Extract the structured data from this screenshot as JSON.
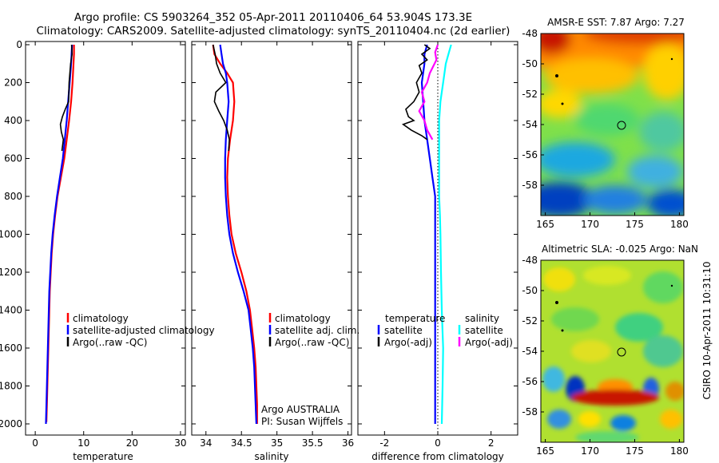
{
  "header": {
    "line1": "Argo profile: CS 5903264_352 05-Apr-2011 20110406_64 53.904S 173.3E",
    "line2": "Climatology: CARS2009. Satellite-adjusted climatology: synTS_20110404.nc (2d earlier)"
  },
  "colors": {
    "climatology": "#ff0000",
    "satellite": "#0000ff",
    "argo": "#000000",
    "diff_t_satellite": "#0000ff",
    "diff_t_argo": "#000000",
    "diff_s_satellite": "#00ffff",
    "diff_s_argo": "#ff00ff"
  },
  "chart_data": [
    {
      "id": "temperature",
      "type": "line",
      "xlabel": "temperature",
      "ylabel": "",
      "xlim": [
        -2,
        31
      ],
      "ylim": [
        2050,
        0
      ],
      "x_ticks": [
        "0",
        "10",
        "20",
        "30"
      ],
      "x_tick_values": [
        0,
        10,
        20,
        30
      ],
      "y_ticks": [
        "0",
        "200",
        "400",
        "600",
        "800",
        "1000",
        "1200",
        "1400",
        "1600",
        "1800",
        "2000"
      ],
      "legend": [
        "climatology",
        "satellite-adjusted climatology",
        "Argo(..raw -QC)"
      ],
      "series": [
        {
          "name": "climatology",
          "color_key": "climatology",
          "points": [
            [
              8.0,
              0
            ],
            [
              8.0,
              50
            ],
            [
              7.9,
              100
            ],
            [
              7.7,
              200
            ],
            [
              7.4,
              300
            ],
            [
              7.0,
              400
            ],
            [
              6.5,
              500
            ],
            [
              6.0,
              600
            ],
            [
              5.3,
              700
            ],
            [
              4.6,
              800
            ],
            [
              4.1,
              900
            ],
            [
              3.7,
              1000
            ],
            [
              3.4,
              1100
            ],
            [
              3.2,
              1200
            ],
            [
              3.0,
              1300
            ],
            [
              2.9,
              1400
            ],
            [
              2.8,
              1500
            ],
            [
              2.7,
              1600
            ],
            [
              2.6,
              1700
            ],
            [
              2.5,
              1800
            ],
            [
              2.4,
              1900
            ],
            [
              2.3,
              1990
            ]
          ]
        },
        {
          "name": "satellite-adjusted climatology",
          "color_key": "satellite",
          "points": [
            [
              7.6,
              0
            ],
            [
              7.5,
              50
            ],
            [
              7.4,
              100
            ],
            [
              7.1,
              200
            ],
            [
              6.8,
              300
            ],
            [
              6.5,
              400
            ],
            [
              6.1,
              500
            ],
            [
              5.7,
              600
            ],
            [
              5.1,
              700
            ],
            [
              4.5,
              800
            ],
            [
              4.0,
              900
            ],
            [
              3.6,
              1000
            ],
            [
              3.3,
              1100
            ],
            [
              3.1,
              1200
            ],
            [
              2.9,
              1300
            ],
            [
              2.8,
              1400
            ],
            [
              2.7,
              1500
            ],
            [
              2.6,
              1600
            ],
            [
              2.5,
              1700
            ],
            [
              2.4,
              1800
            ],
            [
              2.3,
              1900
            ],
            [
              2.2,
              2000
            ]
          ]
        },
        {
          "name": "Argo(..raw -QC)",
          "color_key": "argo",
          "points": [
            [
              7.5,
              0
            ],
            [
              7.6,
              50
            ],
            [
              7.3,
              100
            ],
            [
              7.0,
              200
            ],
            [
              6.9,
              300
            ],
            [
              6.2,
              340
            ],
            [
              5.6,
              380
            ],
            [
              5.2,
              420
            ],
            [
              5.4,
              460
            ],
            [
              5.8,
              500
            ],
            [
              5.5,
              560
            ]
          ]
        }
      ]
    },
    {
      "id": "salinity",
      "type": "line",
      "xlabel": "salinity",
      "ylabel": "",
      "xlim": [
        33.8,
        36.05
      ],
      "ylim": [
        2050,
        0
      ],
      "x_ticks": [
        "34",
        "34.5",
        "35",
        "35.5",
        "36"
      ],
      "x_tick_values": [
        34,
        34.5,
        35,
        35.5,
        36
      ],
      "legend": [
        "climatology",
        "satellite adj. clim.",
        "Argo(..raw -QC)"
      ],
      "annotation": [
        "Argo AUSTRALIA",
        "PI: Susan Wijffels"
      ],
      "series": [
        {
          "name": "climatology",
          "color_key": "climatology",
          "points": [
            [
              34.1,
              0
            ],
            [
              34.12,
              50
            ],
            [
              34.2,
              100
            ],
            [
              34.3,
              150
            ],
            [
              34.38,
              200
            ],
            [
              34.4,
              300
            ],
            [
              34.38,
              400
            ],
            [
              34.34,
              500
            ],
            [
              34.31,
              600
            ],
            [
              34.3,
              700
            ],
            [
              34.31,
              800
            ],
            [
              34.33,
              900
            ],
            [
              34.36,
              1000
            ],
            [
              34.42,
              1100
            ],
            [
              34.5,
              1200
            ],
            [
              34.57,
              1300
            ],
            [
              34.62,
              1400
            ],
            [
              34.65,
              1500
            ],
            [
              34.68,
              1600
            ],
            [
              34.7,
              1700
            ],
            [
              34.71,
              1800
            ],
            [
              34.72,
              1900
            ],
            [
              34.72,
              2000
            ]
          ]
        },
        {
          "name": "satellite adj. clim.",
          "color_key": "satellite",
          "points": [
            [
              34.2,
              0
            ],
            [
              34.22,
              50
            ],
            [
              34.24,
              100
            ],
            [
              34.28,
              150
            ],
            [
              34.3,
              200
            ],
            [
              34.32,
              300
            ],
            [
              34.3,
              400
            ],
            [
              34.28,
              500
            ],
            [
              34.27,
              600
            ],
            [
              34.27,
              700
            ],
            [
              34.28,
              800
            ],
            [
              34.3,
              900
            ],
            [
              34.33,
              1000
            ],
            [
              34.38,
              1100
            ],
            [
              34.45,
              1200
            ],
            [
              34.53,
              1300
            ],
            [
              34.6,
              1400
            ],
            [
              34.63,
              1500
            ],
            [
              34.66,
              1600
            ],
            [
              34.68,
              1700
            ],
            [
              34.69,
              1800
            ],
            [
              34.7,
              1900
            ],
            [
              34.71,
              2000
            ]
          ]
        },
        {
          "name": "Argo(..raw -QC)",
          "color_key": "argo",
          "points": [
            [
              34.1,
              0
            ],
            [
              34.13,
              50
            ],
            [
              34.15,
              100
            ],
            [
              34.2,
              150
            ],
            [
              34.28,
              200
            ],
            [
              34.14,
              250
            ],
            [
              34.12,
              300
            ],
            [
              34.18,
              350
            ],
            [
              34.25,
              400
            ],
            [
              34.3,
              450
            ],
            [
              34.33,
              500
            ],
            [
              34.32,
              560
            ]
          ]
        }
      ]
    },
    {
      "id": "difference",
      "type": "line",
      "xlabel": "difference from climatology",
      "ylabel": "",
      "xlim": [
        -3.0,
        3.0
      ],
      "ylim": [
        2050,
        0
      ],
      "x_ticks": [
        "-2",
        "0",
        "2"
      ],
      "x_tick_values": [
        -2,
        0,
        2
      ],
      "legend_header": [
        "temperature",
        "salinity"
      ],
      "legend_temperature": [
        "satellite",
        "Argo(-adj)"
      ],
      "legend_salinity": [
        "satellite",
        "Argo(-adj)"
      ],
      "series": [
        {
          "name": "temperature satellite",
          "color_key": "diff_t_satellite",
          "points": [
            [
              -0.4,
              0
            ],
            [
              -0.5,
              50
            ],
            [
              -0.5,
              100
            ],
            [
              -0.6,
              200
            ],
            [
              -0.55,
              300
            ],
            [
              -0.5,
              400
            ],
            [
              -0.4,
              500
            ],
            [
              -0.3,
              600
            ],
            [
              -0.2,
              700
            ],
            [
              -0.1,
              800
            ],
            [
              -0.1,
              1000
            ],
            [
              -0.1,
              1200
            ],
            [
              -0.1,
              1400
            ],
            [
              -0.1,
              1600
            ],
            [
              -0.1,
              1800
            ],
            [
              -0.1,
              2000
            ]
          ]
        },
        {
          "name": "temperature Argo(-adj)",
          "color_key": "diff_t_argo",
          "points": [
            [
              -0.5,
              0
            ],
            [
              -0.3,
              20
            ],
            [
              -0.6,
              50
            ],
            [
              -0.4,
              80
            ],
            [
              -0.7,
              110
            ],
            [
              -0.6,
              150
            ],
            [
              -0.8,
              200
            ],
            [
              -0.7,
              250
            ],
            [
              -0.9,
              300
            ],
            [
              -1.2,
              340
            ],
            [
              -1.1,
              380
            ],
            [
              -0.9,
              400
            ],
            [
              -1.3,
              420
            ],
            [
              -1.0,
              450
            ],
            [
              -0.6,
              480
            ],
            [
              -0.4,
              500
            ]
          ]
        },
        {
          "name": "salinity satellite",
          "color_key": "diff_s_satellite",
          "points": [
            [
              0.5,
              0
            ],
            [
              0.4,
              50
            ],
            [
              0.3,
              100
            ],
            [
              0.2,
              200
            ],
            [
              0.1,
              300
            ],
            [
              0.05,
              400
            ],
            [
              0.05,
              600
            ],
            [
              0.05,
              800
            ],
            [
              0.08,
              900
            ],
            [
              0.1,
              1000
            ],
            [
              0.12,
              1200
            ],
            [
              0.15,
              1400
            ],
            [
              0.2,
              1600
            ],
            [
              0.18,
              1800
            ],
            [
              0.15,
              2000
            ]
          ]
        },
        {
          "name": "salinity Argo(-adj)",
          "color_key": "diff_s_argo",
          "points": [
            [
              0.0,
              0
            ],
            [
              -0.1,
              40
            ],
            [
              -0.05,
              80
            ],
            [
              -0.3,
              150
            ],
            [
              -0.4,
              200
            ],
            [
              -0.6,
              250
            ],
            [
              -0.5,
              300
            ],
            [
              -0.7,
              350
            ],
            [
              -0.5,
              400
            ],
            [
              -0.4,
              450
            ],
            [
              -0.2,
              500
            ]
          ]
        }
      ]
    },
    {
      "id": "amsr-sst-map",
      "type": "heatmap",
      "title": "AMSR-E SST: 7.87 Argo: 7.27",
      "xlim": [
        164.5,
        180.5
      ],
      "ylim": [
        -60,
        -48
      ],
      "x_ticks": [
        "165",
        "170",
        "175",
        "180"
      ],
      "x_tick_values": [
        165,
        170,
        175,
        180
      ],
      "y_ticks": [
        "-48",
        "-50",
        "-52",
        "-54",
        "-56",
        "-58"
      ],
      "y_tick_values": [
        -48,
        -50,
        -52,
        -54,
        -56,
        -58
      ],
      "profile_marker": [
        173.3,
        -53.904
      ]
    },
    {
      "id": "altimetric-sla-map",
      "type": "heatmap",
      "title": "Altimetric SLA: -0.025 Argo: NaN",
      "xlim": [
        164.5,
        180.5
      ],
      "ylim": [
        -60,
        -48
      ],
      "x_ticks": [
        "165",
        "170",
        "175",
        "180"
      ],
      "x_tick_values": [
        165,
        170,
        175,
        180
      ],
      "y_ticks": [
        "-48",
        "-50",
        "-52",
        "-54",
        "-56",
        "-58"
      ],
      "y_tick_values": [
        -48,
        -50,
        -52,
        -54,
        -56,
        -58
      ],
      "profile_marker": [
        173.3,
        -53.904
      ]
    }
  ],
  "footer": {
    "stamp": "CSIRO 10-Apr-2011 10:31:10"
  }
}
